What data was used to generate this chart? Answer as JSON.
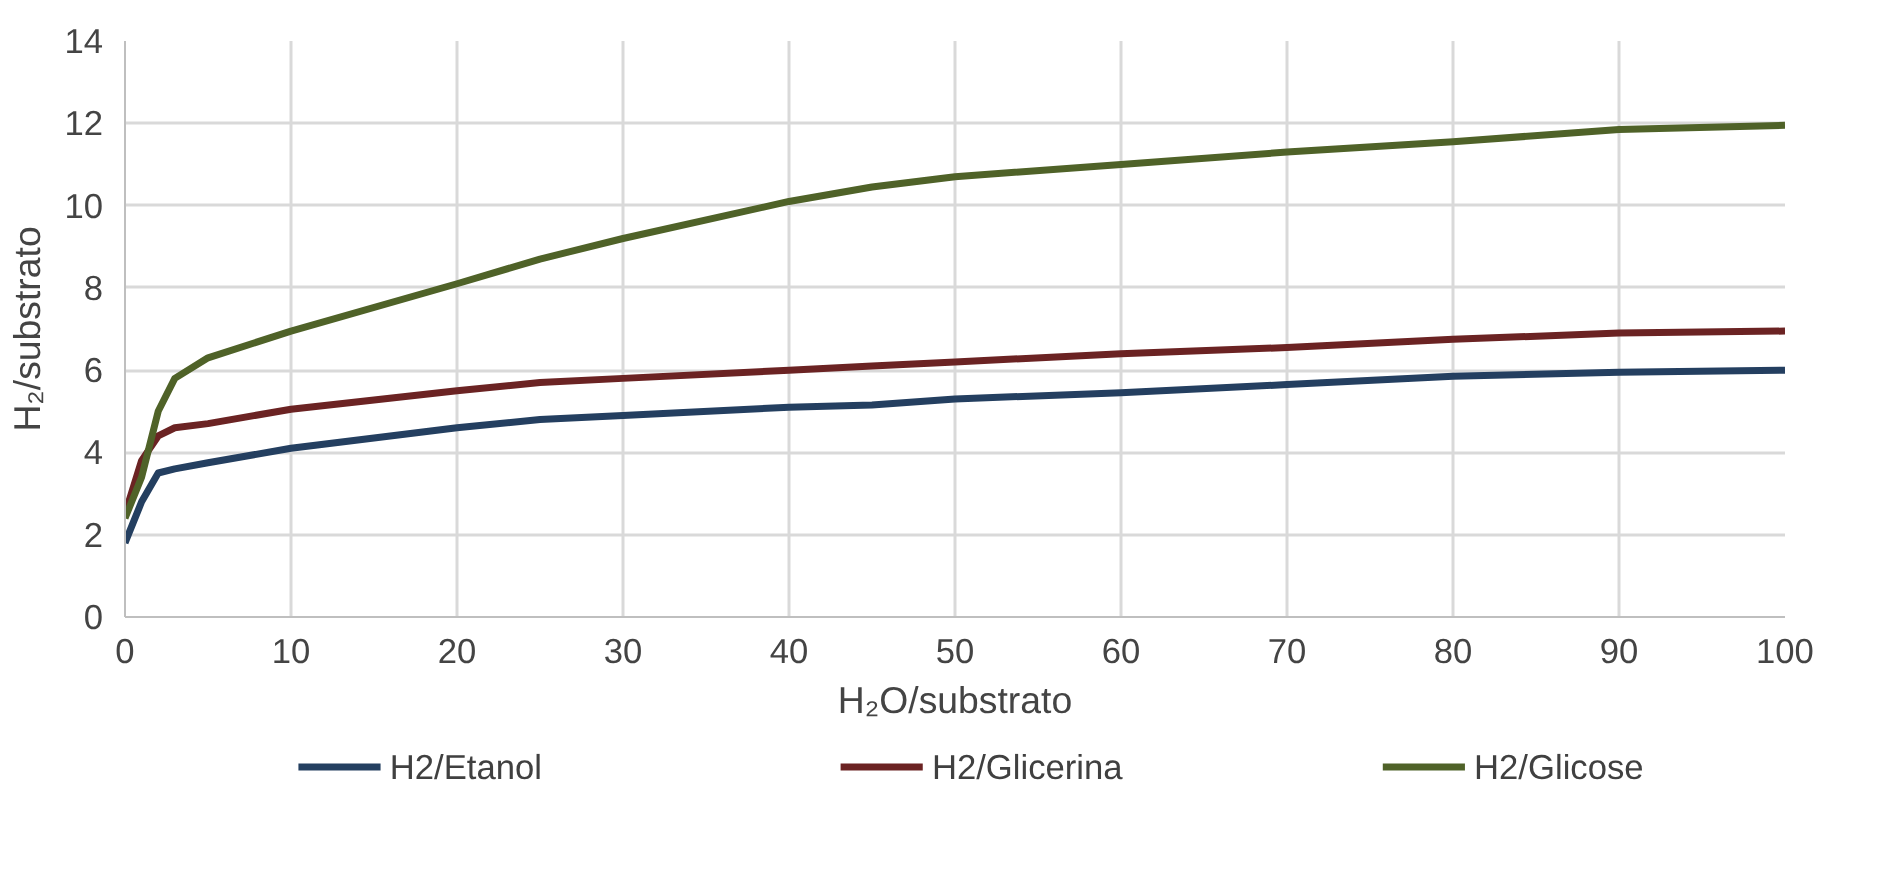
{
  "chart_data": {
    "type": "line",
    "xlabel": "H₂O/substrato",
    "ylabel": "H₂/substrato",
    "x": [
      0,
      1,
      2,
      3,
      5,
      10,
      20,
      25,
      30,
      40,
      45,
      50,
      60,
      70,
      80,
      90,
      100
    ],
    "series": [
      {
        "name": "H2/Etanol",
        "color": "#243f60",
        "values": [
          1.8,
          2.8,
          3.5,
          3.6,
          3.75,
          4.1,
          4.6,
          4.8,
          4.9,
          5.1,
          5.15,
          5.3,
          5.45,
          5.65,
          5.85,
          5.95,
          6.0
        ]
      },
      {
        "name": "H2/Glicerina",
        "color": "#6b2323",
        "values": [
          2.5,
          3.8,
          4.4,
          4.6,
          4.7,
          5.05,
          5.5,
          5.7,
          5.8,
          6.0,
          6.1,
          6.2,
          6.4,
          6.55,
          6.75,
          6.9,
          6.95
        ]
      },
      {
        "name": "H2/Glicose",
        "color": "#4f6228",
        "values": [
          2.4,
          3.4,
          5.0,
          5.8,
          6.3,
          6.95,
          8.1,
          8.7,
          9.2,
          10.1,
          10.45,
          10.7,
          11.0,
          11.3,
          11.55,
          11.85,
          11.95
        ]
      }
    ],
    "xlim": [
      0,
      100
    ],
    "xticks": [
      0,
      10,
      20,
      30,
      40,
      50,
      60,
      70,
      80,
      90,
      100
    ],
    "ylim": [
      0,
      14
    ],
    "yticks": [
      0,
      2,
      4,
      6,
      8,
      10,
      12,
      14
    ],
    "grid": true,
    "legend": "bottom",
    "marker": "none",
    "line_style": "solid"
  }
}
